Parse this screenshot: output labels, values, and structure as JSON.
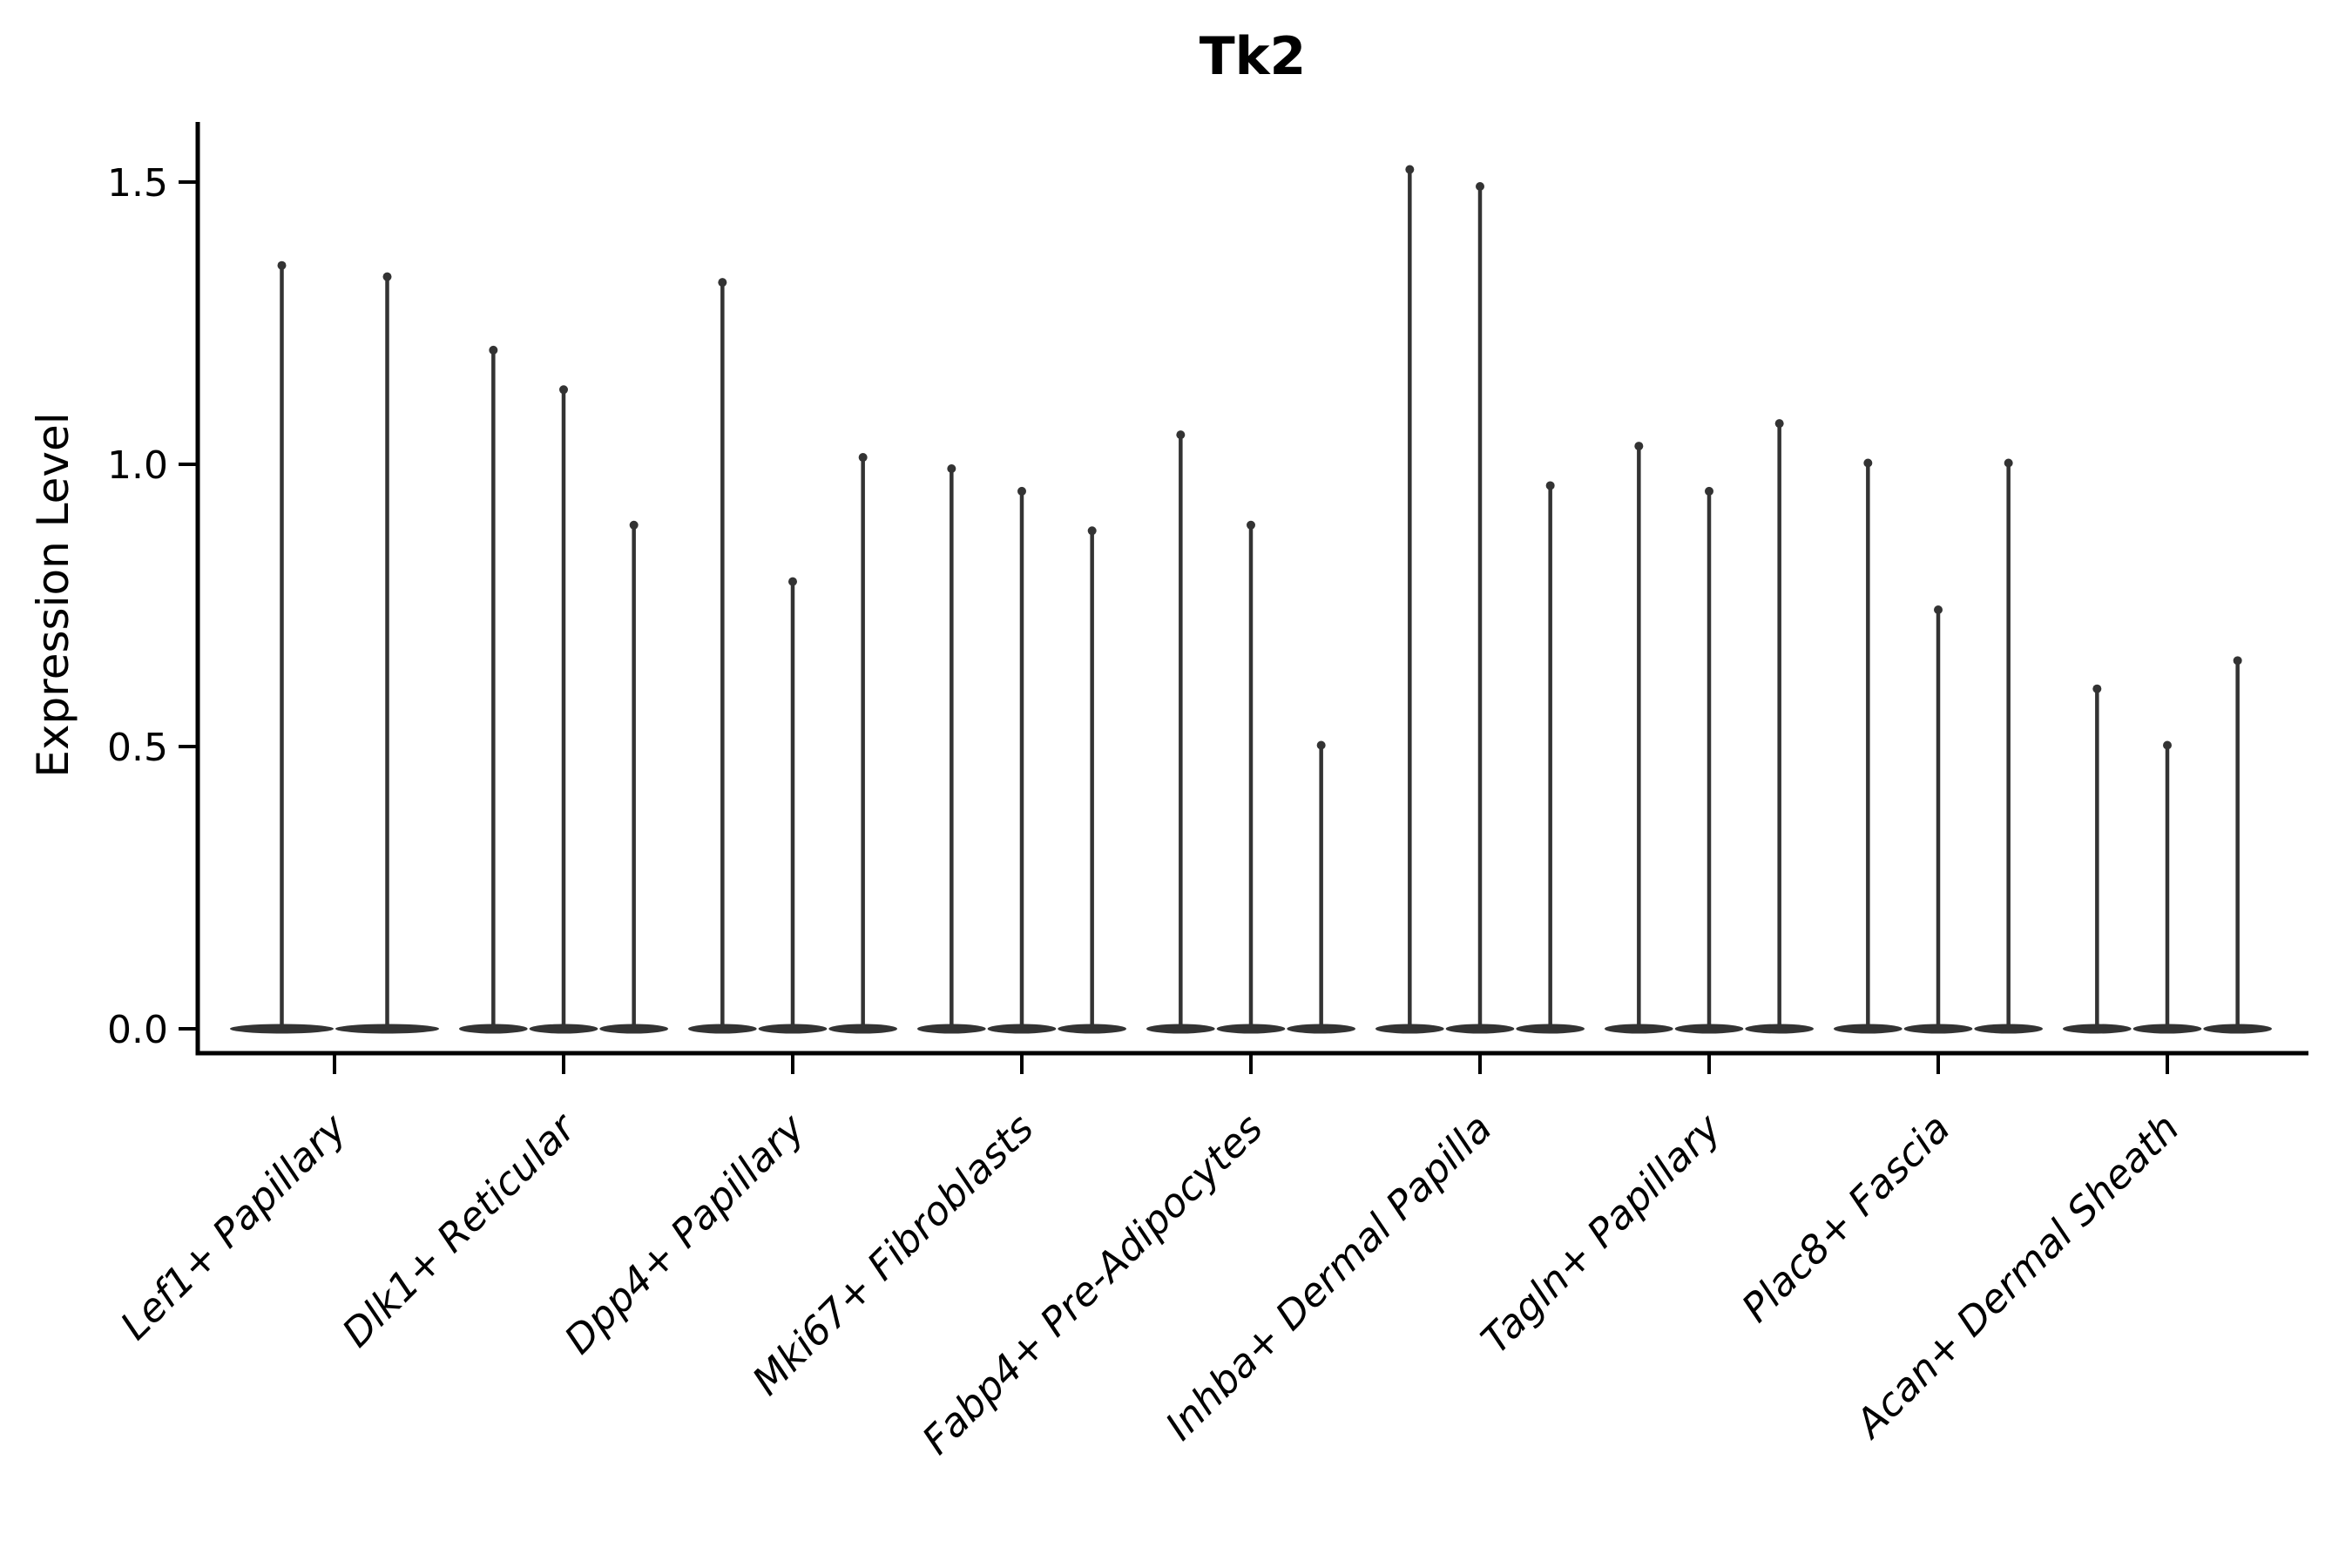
{
  "figure": {
    "background": "#ffffff"
  },
  "chart_data": {
    "type": "violin",
    "title": "Tk2",
    "xlabel": "",
    "ylabel": "Expression Level",
    "ylim": [
      -0.05,
      1.62
    ],
    "yticks": [
      0.0,
      0.5,
      1.0,
      1.5
    ],
    "ytick_labels": [
      "0.0",
      "0.5",
      "1.0",
      "1.5"
    ],
    "grid": false,
    "legend": "none",
    "xtick_label_rotation_deg": 45,
    "xtick_label_style": "italic",
    "violin_fill_color": "#333333",
    "violin_edge_color": "#2a2a2a",
    "axis_color": "#000000",
    "text_color": "#000000",
    "violin_shape_note": "zero-inflated violins: wide flat base at expression 0 with a thin vertical spike up to the max value",
    "categories": [
      "Lef1+ Papillary",
      "Dlk1+ Reticular",
      "Dpp4+ Papillary",
      "Mki67+ Fibroblasts",
      "Fabp4+ Pre-Adipocytes",
      "Inhba+ Dermal Papilla",
      "Tagln+ Papillary",
      "Plac8+ Fascia",
      "Acan+ Dermal Sheath"
    ],
    "violins": [
      {
        "category": "Lef1+ Papillary",
        "min_value": 0,
        "max_values": [
          1.36,
          1.34
        ]
      },
      {
        "category": "Dlk1+ Reticular",
        "min_value": 0,
        "max_values": [
          1.21,
          1.14,
          0.9
        ]
      },
      {
        "category": "Dpp4+ Papillary",
        "min_value": 0,
        "max_values": [
          1.33,
          0.8,
          1.02
        ]
      },
      {
        "category": "Mki67+ Fibroblasts",
        "min_value": 0,
        "max_values": [
          1.0,
          0.96,
          0.89
        ]
      },
      {
        "category": "Fabp4+ Pre-Adipocytes",
        "min_value": 0,
        "max_values": [
          1.06,
          0.9,
          0.51
        ]
      },
      {
        "category": "Inhba+ Dermal Papilla",
        "min_value": 0,
        "max_values": [
          1.53,
          1.5,
          0.97
        ]
      },
      {
        "category": "Tagln+ Papillary",
        "min_value": 0,
        "max_values": [
          1.04,
          0.96,
          1.08
        ]
      },
      {
        "category": "Plac8+ Fascia",
        "min_value": 0,
        "max_values": [
          1.01,
          0.75,
          1.01
        ]
      },
      {
        "category": "Acan+ Dermal Sheath",
        "min_value": 0,
        "max_values": [
          0.61,
          0.51,
          0.66
        ]
      }
    ]
  }
}
